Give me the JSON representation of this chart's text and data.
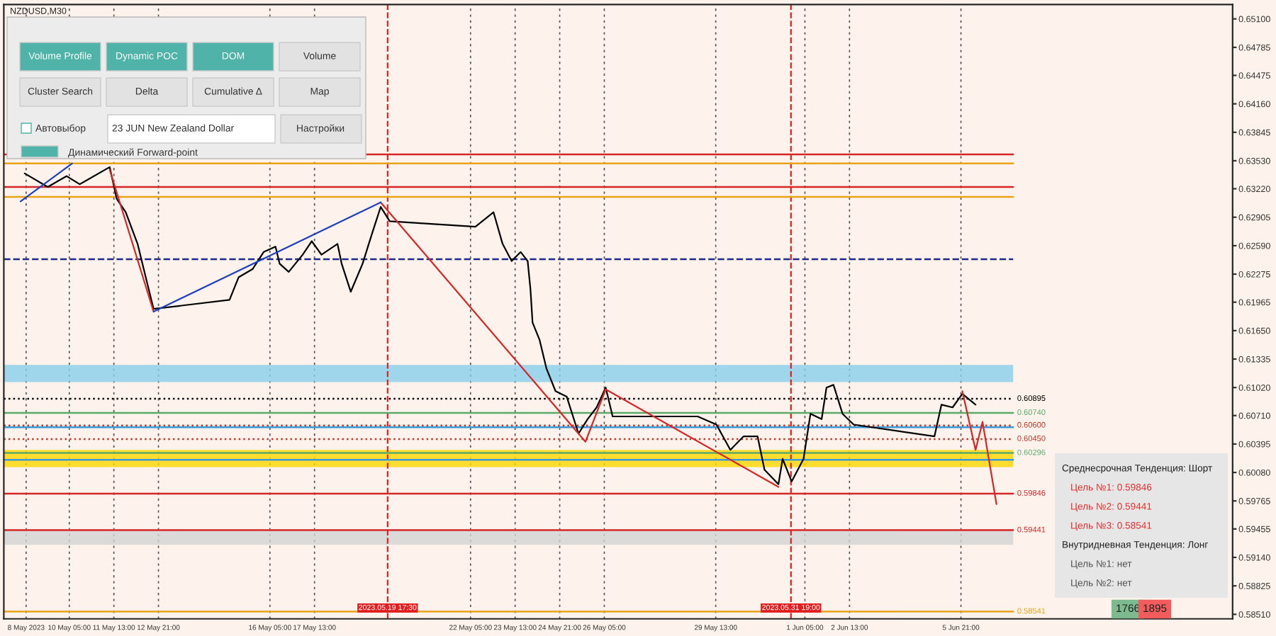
{
  "chart_data": {
    "type": "line",
    "title": "NZDUSD,M30",
    "xlim": [
      "2023-05-08T06:00",
      "2023-06-14T00:00"
    ],
    "ylim": [
      0.5846,
      0.6526
    ],
    "xticks": [
      {
        "value": "2023-05-08T22:00",
        "label": "8 May 2023"
      },
      {
        "value": "2023-05-10T05:00",
        "label": "10 May 05:00"
      },
      {
        "value": "2023-05-11T13:00",
        "label": "11 May 13:00"
      },
      {
        "value": "2023-05-12T21:00",
        "label": "12 May 21:00"
      },
      {
        "value": "2023-05-16T05:00",
        "label": "16 May 05:00"
      },
      {
        "value": "2023-05-17T13:00",
        "label": "17 May 13:00"
      },
      {
        "value": "2023-05-22T05:00",
        "label": "22 May 05:00"
      },
      {
        "value": "2023-05-23T13:00",
        "label": "23 May 13:00"
      },
      {
        "value": "2023-05-24T21:00",
        "label": "24 May 21:00"
      },
      {
        "value": "2023-05-26T05:00",
        "label": "26 May 05:00"
      },
      {
        "value": "2023-05-29T13:00",
        "label": "29 May 13:00"
      },
      {
        "value": "2023-06-01T05:00",
        "label": "1 Jun 05:00"
      },
      {
        "value": "2023-06-02T13:00",
        "label": "2 Jun 13:00"
      },
      {
        "value": "2023-06-05T21:00",
        "label": "5 Jun 21:00"
      }
    ],
    "yticks": [
      {
        "value": 0.651,
        "label": "0.65100"
      },
      {
        "value": 0.64785,
        "label": "0.64785"
      },
      {
        "value": 0.64475,
        "label": "0.64475"
      },
      {
        "value": 0.6416,
        "label": "0.64160"
      },
      {
        "value": 0.63845,
        "label": "0.63845"
      },
      {
        "value": 0.6353,
        "label": "0.63530"
      },
      {
        "value": 0.6322,
        "label": "0.63220"
      },
      {
        "value": 0.62905,
        "label": "0.62905"
      },
      {
        "value": 0.6259,
        "label": "0.62590"
      },
      {
        "value": 0.62275,
        "label": "0.62275"
      },
      {
        "value": 0.61965,
        "label": "0.61965"
      },
      {
        "value": 0.6165,
        "label": "0.61650"
      },
      {
        "value": 0.61335,
        "label": "0.61335"
      },
      {
        "value": 0.6102,
        "label": "0.61020"
      },
      {
        "value": 0.6071,
        "label": "0.60710"
      },
      {
        "value": 0.60395,
        "label": "0.60395"
      },
      {
        "value": 0.6008,
        "label": "0.60080"
      },
      {
        "value": 0.59765,
        "label": "0.59765"
      },
      {
        "value": 0.59455,
        "label": "0.59455"
      },
      {
        "value": 0.5914,
        "label": "0.59140"
      },
      {
        "value": 0.58825,
        "label": "0.58825"
      },
      {
        "value": 0.5851,
        "label": "0.58510"
      }
    ],
    "grid": "x",
    "legend": false,
    "series": [
      {
        "type": "line",
        "color": "#000000",
        "x": [
          "2023-05-08T21:00",
          "2023-05-09T13:30",
          "2023-05-10T03:00",
          "2023-05-10T12:30",
          "2023-05-11T10:00",
          "2023-05-11T15:00",
          "2023-05-11T21:30",
          "2023-05-12T06:00",
          "2023-05-12T13:00",
          "2023-05-12T17:30",
          "2023-05-15T00:00",
          "2023-05-15T06:30",
          "2023-05-15T16:30",
          "2023-05-16T00:30",
          "2023-05-16T09:00",
          "2023-05-16T12:00",
          "2023-05-16T18:30",
          "2023-05-17T04:30",
          "2023-05-17T11:00",
          "2023-05-17T18:00",
          "2023-05-18T05:30",
          "2023-05-18T08:30",
          "2023-05-18T15:00",
          "2023-05-18T23:30",
          "2023-05-19T06:00",
          "2023-05-19T12:30",
          "2023-05-19T19:00",
          "2023-05-22T08:30",
          "2023-05-22T21:30",
          "2023-05-23T04:00",
          "2023-05-23T10:30",
          "2023-05-23T17:00",
          "2023-05-23T22:00",
          "2023-05-24T00:00",
          "2023-05-24T01:30",
          "2023-05-24T06:30",
          "2023-05-24T11:30",
          "2023-05-24T18:00",
          "2023-05-25T02:00",
          "2023-05-25T10:30",
          "2023-05-25T17:00",
          "2023-05-25T23:30",
          "2023-05-26T06:00",
          "2023-05-26T11:00",
          "2023-05-29T00:00",
          "2023-05-29T13:30",
          "2023-05-29T23:30",
          "2023-05-30T09:00",
          "2023-05-30T19:00",
          "2023-05-31T00:00",
          "2023-05-31T10:00",
          "2023-05-31T13:00",
          "2023-05-31T19:30",
          "2023-06-01T04:00",
          "2023-06-01T09:00",
          "2023-06-01T17:00",
          "2023-06-01T20:30",
          "2023-06-02T01:30",
          "2023-06-02T08:00",
          "2023-06-02T16:00",
          "2023-06-05T02:00",
          "2023-06-05T07:00",
          "2023-06-05T15:00",
          "2023-06-05T22:00",
          "2023-06-06T07:30"
        ],
        "values": [
          0.6339,
          0.6324,
          0.6336,
          0.6327,
          0.6346,
          0.6311,
          0.6296,
          0.6261,
          0.6217,
          0.6189,
          0.6199,
          0.6224,
          0.6233,
          0.6252,
          0.6258,
          0.6239,
          0.623,
          0.6249,
          0.6264,
          0.6249,
          0.6261,
          0.6239,
          0.6208,
          0.6239,
          0.6271,
          0.6302,
          0.6286,
          0.628,
          0.6296,
          0.6261,
          0.6242,
          0.6252,
          0.6242,
          0.6211,
          0.6174,
          0.6155,
          0.6123,
          0.6098,
          0.6092,
          0.6051,
          0.6067,
          0.608,
          0.6102,
          0.607,
          0.607,
          0.6061,
          0.6033,
          0.6048,
          0.6048,
          0.6011,
          0.5995,
          0.6023,
          0.5998,
          0.6023,
          0.6073,
          0.6067,
          0.6102,
          0.6105,
          0.6073,
          0.6061,
          0.6048,
          0.6083,
          0.608,
          0.6095,
          0.6083
        ]
      },
      {
        "type": "line",
        "color": "#d62728",
        "x": [
          "2023-05-11T10:00",
          "2023-05-12T17:30",
          "2023-05-15T00:00",
          "2023-05-19T12:30",
          "2023-05-25T15:30",
          "2023-05-26T06:00",
          "2023-05-31T10:00",
          "2023-06-02T00:00",
          "2023-06-05T22:00",
          "2023-06-06T07:30",
          "2023-06-06T12:30",
          "2023-06-06T22:30"
        ],
        "values": [
          0.6343,
          0.6186,
          null,
          0.6307,
          0.6042,
          0.61,
          0.5992,
          null,
          0.6098,
          0.6033,
          0.6064,
          0.5973
        ]
      },
      {
        "type": "line",
        "color": "#2040c0",
        "x": [
          "2023-05-08T18:00",
          "2023-05-10T07:00",
          "2023-05-10T12:00",
          "2023-05-12T17:30",
          "2023-05-19T12:30"
        ],
        "values": [
          0.6308,
          0.635,
          null,
          0.6186,
          0.6307
        ]
      }
    ],
    "ref_lines": [
      {
        "axis": "x",
        "value": "2023-05-19T17:30",
        "label": "2023.05.19 17:30",
        "color": "#e02020",
        "line_style": "dashed"
      },
      {
        "axis": "x",
        "value": "2023-05-31T19:00",
        "label": "2023.05.31 19:00",
        "color": "#e02020",
        "line_style": "dashed"
      },
      {
        "axis": "y",
        "value": 0.635,
        "color": "#e8a317"
      },
      {
        "axis": "y",
        "value": 0.6313,
        "color": "#e8a317"
      },
      {
        "axis": "y",
        "value": 0.636,
        "color": "#d62728"
      },
      {
        "axis": "y",
        "value": 0.6324,
        "color": "#d62728"
      },
      {
        "axis": "y",
        "value": 0.6244,
        "color": "#1f2a8c",
        "line_style": "dashed"
      },
      {
        "axis": "y",
        "value": 0.6058,
        "color": "#3a9ad9"
      },
      {
        "axis": "y",
        "value": 0.6022,
        "color": "#3a9ad9"
      },
      {
        "axis": "y",
        "value": 0.60895,
        "label": "0.60895",
        "color": "#000000",
        "line_style": "dotted"
      },
      {
        "axis": "y",
        "value": 0.6074,
        "label": "0.60740",
        "color": "#5aaa6a"
      },
      {
        "axis": "y",
        "value": 0.606,
        "label": "0.60600",
        "color": "#c0392b",
        "line_style": "dotted"
      },
      {
        "axis": "y",
        "value": 0.6045,
        "label": "0.60450",
        "color": "#c0392b",
        "line_style": "dotted"
      },
      {
        "axis": "y",
        "value": 0.60296,
        "label": "0.60296",
        "color": "#5aaa6a"
      },
      {
        "axis": "y",
        "value": 0.59846,
        "label": "0.59846",
        "color": "#d62728"
      },
      {
        "axis": "y",
        "value": 0.59441,
        "label": "0.59441",
        "color": "#d62728"
      },
      {
        "axis": "y",
        "value": 0.58541,
        "label": "0.58541",
        "color": "#e8a317"
      }
    ],
    "bands": [
      {
        "axis": "y",
        "from": 0.6014,
        "to": 0.6033,
        "color": "#ffd700"
      },
      {
        "axis": "y",
        "from": 0.6108,
        "to": 0.6127,
        "color": "#87ceeb"
      },
      {
        "axis": "y",
        "from": 0.5928,
        "to": 0.5945,
        "color": "#d3d3d3"
      }
    ],
    "annotations": [
      "Volume Profile",
      "Dynamic POC",
      "DOM",
      "Volume",
      "Cluster Search",
      "Delta",
      "Cumulative Δ",
      "Map",
      "Автовыбор",
      "23 JUN New Zealand Dollar",
      "Настройки",
      "Динамический Forward-point",
      "Среднесрочная Тенденция: Шорт",
      "Цель №1: 0.59846",
      "Цель №2: 0.59441",
      "Цель №3: 0.58541",
      "Внутридневная Тенденция: Лонг",
      "Цель №1: нет",
      "Цель №2: нет",
      "1766",
      "1895"
    ]
  }
}
